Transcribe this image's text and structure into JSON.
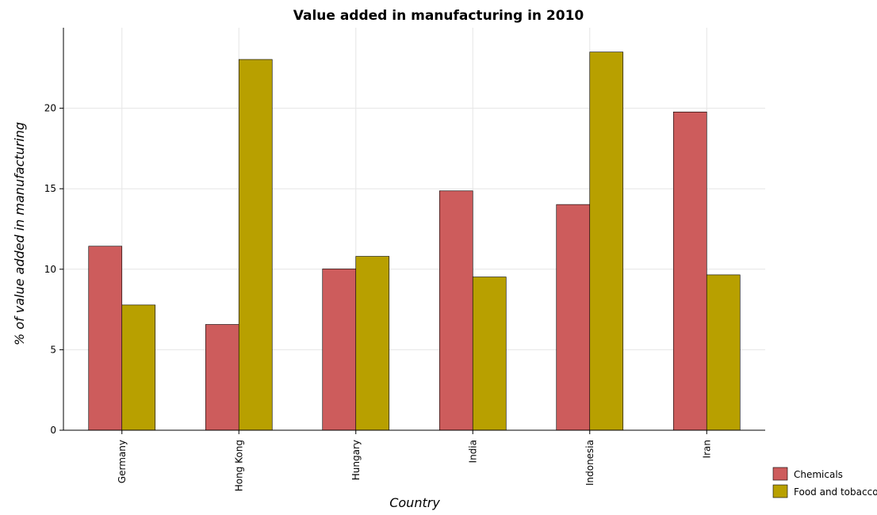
{
  "chart_data": {
    "type": "bar",
    "title": "Value added in manufacturing in 2010",
    "xlabel": "Country",
    "ylabel": "% of value added in manufacturing",
    "categories": [
      "Germany",
      "Hong Kong",
      "Hungary",
      "India",
      "Indonesia",
      "Iran"
    ],
    "series": [
      {
        "name": "Chemicals",
        "color": "#cd5c5c",
        "values": [
          11.43,
          6.57,
          10.02,
          14.87,
          14.02,
          19.77
        ]
      },
      {
        "name": "Food and tobacco",
        "color": "#b8a000",
        "values": [
          7.78,
          23.03,
          10.8,
          9.52,
          23.49,
          9.65
        ]
      }
    ],
    "ylim": [
      0,
      25
    ],
    "yticks": [
      0,
      5,
      10,
      15,
      20
    ],
    "grid": true,
    "legend_position": "bottom-right"
  }
}
